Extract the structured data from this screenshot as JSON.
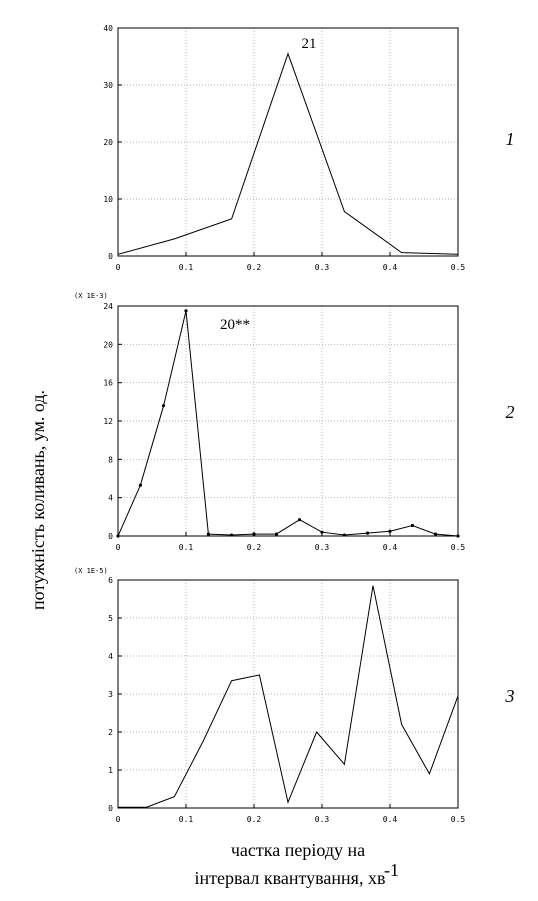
{
  "ylabel": "потужність коливань, ум. од.",
  "xlabel_line1": "частка періоду на",
  "xlabel_line2": "інтервал квантування, хв",
  "xlabel_sup": "-1",
  "chart_data": [
    {
      "type": "line",
      "panel_number": "1",
      "scale_label": "",
      "annotation": "21",
      "xlim": [
        0,
        0.5
      ],
      "ylim": [
        0,
        40
      ],
      "xticks": [
        0,
        0.1,
        0.2,
        0.3,
        0.4,
        0.5
      ],
      "xtick_labels": [
        "0",
        "0.1",
        "0.2",
        "0.3",
        "0.4",
        "0.5"
      ],
      "yticks": [
        0,
        10,
        20,
        30,
        40
      ],
      "ytick_labels": [
        "0",
        "10",
        "20",
        "30",
        "40"
      ],
      "markers": false,
      "x": [
        0,
        0.083,
        0.167,
        0.25,
        0.333,
        0.417,
        0.5
      ],
      "y": [
        0.3,
        3.0,
        6.5,
        35.5,
        7.8,
        0.6,
        0.3
      ]
    },
    {
      "type": "line",
      "panel_number": "2",
      "scale_label": "(X 1E-3)",
      "annotation": "20**",
      "xlim": [
        0,
        0.5
      ],
      "ylim": [
        0,
        24
      ],
      "xticks": [
        0,
        0.1,
        0.2,
        0.3,
        0.4,
        0.5
      ],
      "xtick_labels": [
        "0",
        "0.1",
        "0.2",
        "0.3",
        "0.4",
        "0.5"
      ],
      "yticks": [
        0,
        4,
        8,
        12,
        16,
        20,
        24
      ],
      "ytick_labels": [
        "0",
        "4",
        "8",
        "12",
        "16",
        "20",
        "24"
      ],
      "markers": true,
      "x": [
        0,
        0.033,
        0.067,
        0.1,
        0.133,
        0.167,
        0.2,
        0.233,
        0.267,
        0.3,
        0.333,
        0.367,
        0.4,
        0.433,
        0.467,
        0.5
      ],
      "y": [
        0,
        5.3,
        13.6,
        23.5,
        0.2,
        0.1,
        0.2,
        0.2,
        1.7,
        0.4,
        0.1,
        0.3,
        0.5,
        1.1,
        0.2,
        0.0
      ]
    },
    {
      "type": "line",
      "panel_number": "3",
      "scale_label": "(X 1E-5)",
      "annotation": "",
      "xlim": [
        0,
        0.5
      ],
      "ylim": [
        0,
        6
      ],
      "xticks": [
        0,
        0.1,
        0.2,
        0.3,
        0.4,
        0.5
      ],
      "xtick_labels": [
        "0",
        "0.1",
        "0.2",
        "0.3",
        "0.4",
        "0.5"
      ],
      "yticks": [
        0,
        1,
        2,
        3,
        4,
        5,
        6
      ],
      "ytick_labels": [
        "0",
        "1",
        "2",
        "3",
        "4",
        "5",
        "6"
      ],
      "markers": false,
      "x": [
        0,
        0.042,
        0.083,
        0.125,
        0.167,
        0.208,
        0.25,
        0.292,
        0.333,
        0.375,
        0.417,
        0.458,
        0.5
      ],
      "y": [
        0.02,
        0.02,
        0.3,
        1.75,
        3.35,
        3.5,
        0.15,
        2.0,
        1.15,
        5.85,
        2.2,
        0.9,
        2.95
      ]
    }
  ]
}
